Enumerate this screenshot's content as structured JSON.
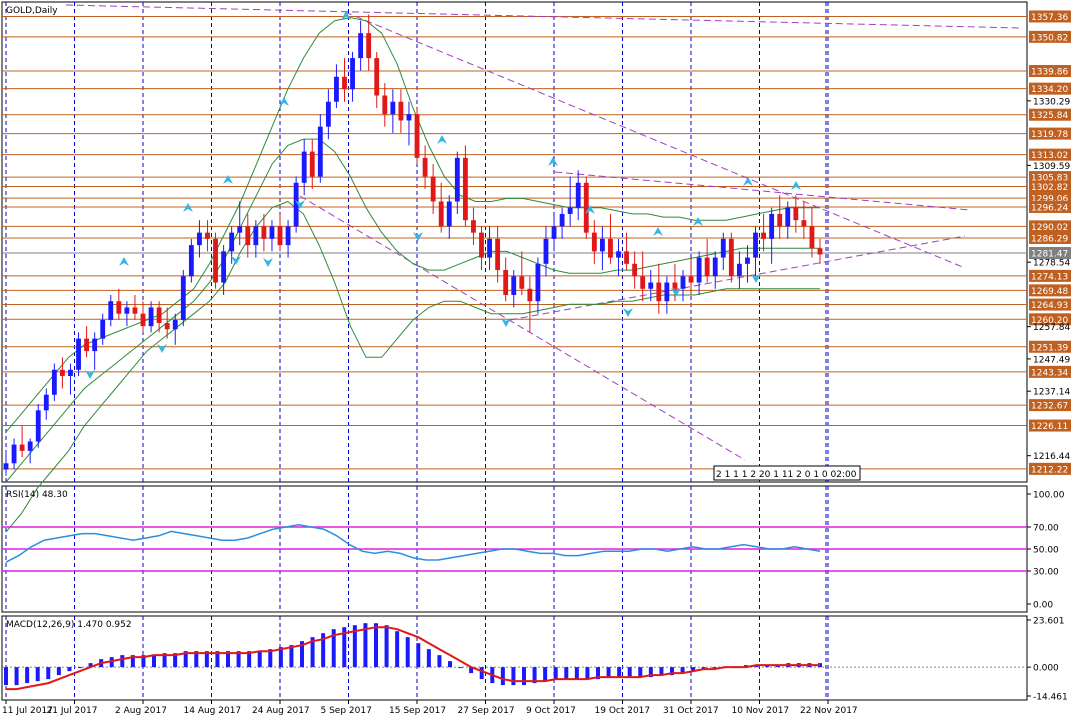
{
  "chart_data": {
    "type": "candlestick",
    "symbol_label": "GOLD,Daily",
    "price_axis_labels": [
      "1357.36",
      "1350.82",
      "1339.86",
      "1334.20",
      "1330.29",
      "1325.84",
      "1319.78",
      "1313.02",
      "1309.59",
      "1305.83",
      "1302.82",
      "1299.06",
      "1296.24",
      "1290.02",
      "1286.29",
      "1281.47",
      "1278.54",
      "1274.13",
      "1269.48",
      "1264.93",
      "1260.20",
      "1257.84",
      "1251.39",
      "1247.49",
      "1243.34",
      "1237.14",
      "1232.67",
      "1226.11",
      "1216.44",
      "1212.22"
    ],
    "highlighted_levels": [
      1357.36,
      1350.82,
      1339.86,
      1334.2,
      1325.84,
      1319.78,
      1313.02,
      1305.83,
      1302.82,
      1299.06,
      1296.24,
      1290.02,
      1286.29,
      1281.47,
      1274.13,
      1269.48,
      1264.93,
      1260.2,
      1251.39,
      1243.34,
      1232.67,
      1226.11,
      1212.22
    ],
    "current_price": 1281.47,
    "ylim": [
      1208,
      1362
    ],
    "x_tick_labels": [
      "11 Jul 2017",
      "21 Jul 2017",
      "2 Aug 2017",
      "14 Aug 2017",
      "24 Aug 2017",
      "5 Sep 2017",
      "15 Sep 2017",
      "27 Sep 2017",
      "9 Oct 2017",
      "19 Oct 2017",
      "31 Oct 2017",
      "10 Nov 2017",
      "22 Nov 2017"
    ],
    "countdown_label": "2 1 1 1 2 20 1 11 2 0 1 0 02:00",
    "candles": [
      [
        1212,
        1218,
        1210,
        1214
      ],
      [
        1214,
        1222,
        1212,
        1220
      ],
      [
        1220,
        1226,
        1216,
        1218
      ],
      [
        1218,
        1222,
        1214,
        1221
      ],
      [
        1221,
        1233,
        1219,
        1231
      ],
      [
        1231,
        1238,
        1228,
        1236
      ],
      [
        1236,
        1246,
        1234,
        1244
      ],
      [
        1244,
        1248,
        1238,
        1242
      ],
      [
        1242,
        1246,
        1236,
        1244
      ],
      [
        1244,
        1256,
        1242,
        1254
      ],
      [
        1254,
        1258,
        1248,
        1250
      ],
      [
        1250,
        1256,
        1244,
        1254
      ],
      [
        1254,
        1262,
        1252,
        1260
      ],
      [
        1260,
        1268,
        1258,
        1266
      ],
      [
        1266,
        1270,
        1260,
        1262
      ],
      [
        1262,
        1266,
        1258,
        1264
      ],
      [
        1264,
        1268,
        1260,
        1262
      ],
      [
        1262,
        1266,
        1256,
        1258
      ],
      [
        1258,
        1266,
        1256,
        1264
      ],
      [
        1264,
        1266,
        1256,
        1259
      ],
      [
        1259,
        1264,
        1254,
        1257
      ],
      [
        1257,
        1262,
        1252,
        1260
      ],
      [
        1260,
        1276,
        1258,
        1274
      ],
      [
        1274,
        1286,
        1272,
        1284
      ],
      [
        1284,
        1292,
        1280,
        1288
      ],
      [
        1288,
        1292,
        1282,
        1286
      ],
      [
        1286,
        1288,
        1270,
        1272
      ],
      [
        1272,
        1284,
        1268,
        1282
      ],
      [
        1282,
        1290,
        1278,
        1288
      ],
      [
        1288,
        1298,
        1284,
        1290
      ],
      [
        1290,
        1294,
        1280,
        1284
      ],
      [
        1284,
        1292,
        1280,
        1290
      ],
      [
        1290,
        1294,
        1282,
        1286
      ],
      [
        1286,
        1292,
        1282,
        1290
      ],
      [
        1290,
        1294,
        1282,
        1284
      ],
      [
        1284,
        1292,
        1280,
        1290
      ],
      [
        1290,
        1306,
        1288,
        1304
      ],
      [
        1304,
        1318,
        1300,
        1314
      ],
      [
        1314,
        1318,
        1302,
        1306
      ],
      [
        1306,
        1326,
        1304,
        1322
      ],
      [
        1322,
        1334,
        1318,
        1330
      ],
      [
        1330,
        1342,
        1328,
        1338
      ],
      [
        1338,
        1344,
        1330,
        1334
      ],
      [
        1334,
        1346,
        1330,
        1344
      ],
      [
        1344,
        1356,
        1340,
        1352
      ],
      [
        1352,
        1358,
        1340,
        1344
      ],
      [
        1344,
        1346,
        1328,
        1332
      ],
      [
        1332,
        1336,
        1322,
        1326
      ],
      [
        1326,
        1334,
        1320,
        1330
      ],
      [
        1330,
        1334,
        1320,
        1324
      ],
      [
        1324,
        1330,
        1316,
        1326
      ],
      [
        1326,
        1328,
        1310,
        1312
      ],
      [
        1312,
        1316,
        1302,
        1306
      ],
      [
        1306,
        1310,
        1294,
        1298
      ],
      [
        1298,
        1304,
        1288,
        1290
      ],
      [
        1290,
        1300,
        1286,
        1298
      ],
      [
        1298,
        1314,
        1294,
        1312
      ],
      [
        1312,
        1316,
        1290,
        1292
      ],
      [
        1292,
        1296,
        1284,
        1288
      ],
      [
        1288,
        1290,
        1276,
        1280
      ],
      [
        1280,
        1290,
        1276,
        1286
      ],
      [
        1286,
        1290,
        1272,
        1276
      ],
      [
        1276,
        1280,
        1266,
        1268
      ],
      [
        1268,
        1276,
        1264,
        1274
      ],
      [
        1274,
        1282,
        1268,
        1270
      ],
      [
        1270,
        1274,
        1256,
        1266
      ],
      [
        1266,
        1280,
        1262,
        1278
      ],
      [
        1278,
        1290,
        1274,
        1286
      ],
      [
        1286,
        1294,
        1282,
        1290
      ],
      [
        1290,
        1296,
        1286,
        1294
      ],
      [
        1294,
        1306,
        1290,
        1296
      ],
      [
        1296,
        1308,
        1292,
        1304
      ],
      [
        1304,
        1306,
        1286,
        1288
      ],
      [
        1288,
        1292,
        1278,
        1282
      ],
      [
        1282,
        1290,
        1276,
        1286
      ],
      [
        1286,
        1294,
        1278,
        1280
      ],
      [
        1280,
        1286,
        1274,
        1282
      ],
      [
        1282,
        1288,
        1276,
        1278
      ],
      [
        1278,
        1282,
        1270,
        1274
      ],
      [
        1274,
        1282,
        1266,
        1270
      ],
      [
        1270,
        1276,
        1266,
        1272
      ],
      [
        1272,
        1278,
        1262,
        1266
      ],
      [
        1266,
        1274,
        1262,
        1272
      ],
      [
        1272,
        1278,
        1266,
        1270
      ],
      [
        1270,
        1276,
        1266,
        1274
      ],
      [
        1274,
        1280,
        1268,
        1272
      ],
      [
        1272,
        1282,
        1268,
        1280
      ],
      [
        1280,
        1286,
        1272,
        1274
      ],
      [
        1274,
        1282,
        1270,
        1280
      ],
      [
        1280,
        1288,
        1276,
        1286
      ],
      [
        1286,
        1288,
        1272,
        1274
      ],
      [
        1274,
        1282,
        1270,
        1278
      ],
      [
        1278,
        1284,
        1272,
        1280
      ],
      [
        1280,
        1290,
        1274,
        1288
      ],
      [
        1288,
        1294,
        1282,
        1286
      ],
      [
        1286,
        1296,
        1278,
        1294
      ],
      [
        1294,
        1300,
        1286,
        1290
      ],
      [
        1290,
        1298,
        1286,
        1296
      ],
      [
        1296,
        1300,
        1288,
        1292
      ],
      [
        1292,
        1298,
        1286,
        1290
      ],
      [
        1290,
        1296,
        1280,
        1283
      ],
      [
        1283,
        1286,
        1278,
        1281
      ]
    ],
    "bollinger": {
      "upper": [
        1224,
        1230,
        1236,
        1242,
        1248,
        1252,
        1254,
        1256,
        1258,
        1260,
        1262,
        1266,
        1270,
        1278,
        1288,
        1298,
        1310,
        1322,
        1334,
        1344,
        1352,
        1356,
        1357,
        1356,
        1352,
        1342,
        1328,
        1316,
        1306,
        1300,
        1298,
        1298,
        1299,
        1299,
        1298,
        1297,
        1296,
        1296,
        1296,
        1295,
        1294,
        1294,
        1293,
        1293,
        1292,
        1292,
        1292,
        1293,
        1294,
        1295,
        1296,
        1296,
        1296
      ],
      "middle": [
        1208,
        1214,
        1220,
        1226,
        1232,
        1238,
        1242,
        1246,
        1250,
        1254,
        1258,
        1262,
        1266,
        1272,
        1280,
        1290,
        1300,
        1310,
        1316,
        1318,
        1318,
        1314,
        1306,
        1296,
        1288,
        1282,
        1278,
        1276,
        1276,
        1278,
        1280,
        1282,
        1282,
        1280,
        1278,
        1276,
        1275,
        1275,
        1275,
        1276,
        1276,
        1277,
        1278,
        1279,
        1280,
        1281,
        1282,
        1283,
        1283,
        1283,
        1283,
        1283,
        1283
      ],
      "lower": [
        1192,
        1198,
        1206,
        1212,
        1218,
        1226,
        1232,
        1238,
        1244,
        1250,
        1254,
        1258,
        1262,
        1266,
        1272,
        1282,
        1290,
        1296,
        1298,
        1294,
        1284,
        1272,
        1258,
        1248,
        1248,
        1254,
        1260,
        1264,
        1266,
        1266,
        1264,
        1262,
        1262,
        1262,
        1263,
        1264,
        1265,
        1265,
        1265,
        1266,
        1266,
        1267,
        1268,
        1268,
        1268,
        1269,
        1270,
        1270,
        1270,
        1270,
        1270,
        1270,
        1270
      ]
    },
    "rsi": {
      "label": "RSI(14) 48.30",
      "axis_labels": [
        "100.00",
        "70.00",
        "50.00",
        "30.00",
        "0.00"
      ],
      "levels": [
        70,
        50,
        30
      ],
      "values": [
        38,
        44,
        52,
        58,
        60,
        62,
        64,
        64,
        62,
        60,
        58,
        60,
        62,
        66,
        64,
        62,
        60,
        58,
        58,
        60,
        64,
        68,
        70,
        72,
        70,
        68,
        62,
        54,
        48,
        46,
        48,
        46,
        42,
        40,
        40,
        42,
        44,
        46,
        48,
        50,
        50,
        48,
        46,
        46,
        44,
        44,
        46,
        48,
        48,
        48,
        50,
        50,
        48,
        50,
        52,
        50,
        50,
        52,
        54,
        52,
        50,
        50,
        52,
        50,
        48
      ]
    },
    "macd": {
      "label": "MACD(12,26,9) 1.470 0.952",
      "axis_labels": [
        "23.601",
        "0.000",
        "-14.461"
      ],
      "ylim": [
        -14.461,
        23.601
      ],
      "hist": [
        -9,
        -9,
        -8,
        -7,
        -6,
        -4,
        -2,
        0,
        2,
        4,
        5,
        6,
        6,
        6,
        6,
        7,
        7,
        8,
        8,
        8,
        8,
        8,
        8,
        8,
        8,
        9,
        10,
        11,
        13,
        15,
        17,
        19,
        20,
        21,
        22,
        22,
        21,
        18,
        15,
        12,
        9,
        6,
        3,
        0,
        -3,
        -6,
        -8,
        -9,
        -9,
        -9,
        -8,
        -7,
        -6,
        -6,
        -6,
        -6,
        -6,
        -5,
        -5,
        -5,
        -5,
        -5,
        -4,
        -4,
        -3,
        -2,
        -1,
        0,
        0,
        0,
        1,
        1,
        1,
        1,
        2,
        2,
        2,
        2
      ],
      "signal": [
        -11,
        -11,
        -10,
        -9,
        -8,
        -6,
        -4,
        -2,
        0,
        2,
        3,
        4,
        5,
        5,
        6,
        6,
        6,
        7,
        7,
        7,
        7,
        7,
        7,
        7,
        8,
        8,
        9,
        10,
        11,
        13,
        14,
        16,
        17,
        18,
        19,
        20,
        20,
        19,
        17,
        15,
        12,
        9,
        6,
        3,
        0,
        -2,
        -4,
        -6,
        -7,
        -7,
        -7,
        -7,
        -6,
        -6,
        -6,
        -6,
        -5,
        -5,
        -5,
        -5,
        -5,
        -4,
        -4,
        -3,
        -3,
        -2,
        -1,
        -1,
        0,
        0,
        0,
        1,
        1,
        1,
        1,
        1,
        1,
        1
      ]
    }
  }
}
